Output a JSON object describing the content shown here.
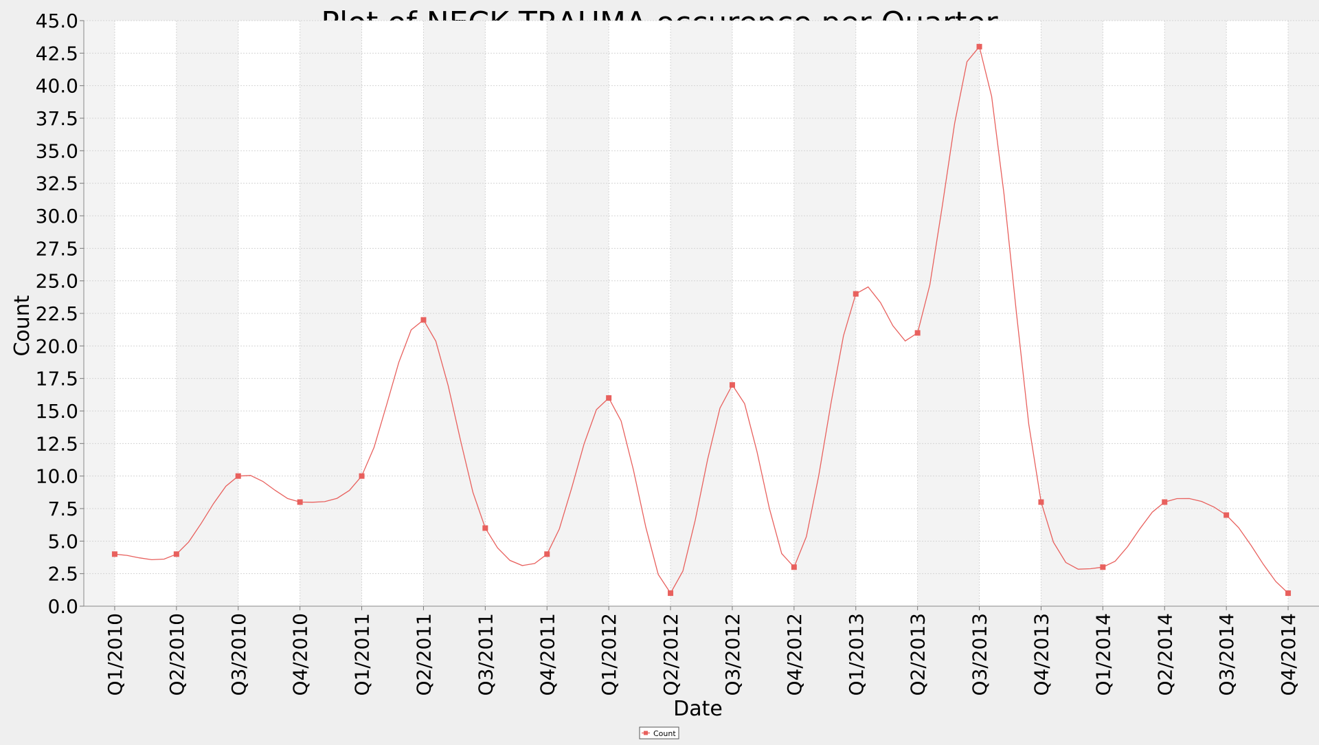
{
  "chart_data": {
    "type": "line",
    "title": "Plot of NECK TRAUMA occurence per Quarter",
    "xlabel": "Date",
    "ylabel": "Count",
    "ylim": [
      0,
      45
    ],
    "y_ticks": [
      "0.0",
      "2.5",
      "5.0",
      "7.5",
      "10.0",
      "12.5",
      "15.0",
      "17.5",
      "20.0",
      "22.5",
      "25.0",
      "27.5",
      "30.0",
      "32.5",
      "35.0",
      "37.5",
      "40.0",
      "42.5",
      "45.0"
    ],
    "grid": true,
    "alternating_bands": true,
    "smoothed": true,
    "categories": [
      "Q1/2010",
      "Q2/2010",
      "Q3/2010",
      "Q4/2010",
      "Q1/2011",
      "Q2/2011",
      "Q3/2011",
      "Q4/2011",
      "Q1/2012",
      "Q2/2012",
      "Q3/2012",
      "Q4/2012",
      "Q1/2013",
      "Q2/2013",
      "Q3/2013",
      "Q4/2013",
      "Q1/2014",
      "Q2/2014",
      "Q3/2014",
      "Q4/2014"
    ],
    "series": [
      {
        "name": "Count",
        "color": "#e8605d",
        "values": [
          4,
          4,
          10,
          8,
          10,
          22,
          6,
          4,
          16,
          1,
          17,
          3,
          24,
          21,
          43,
          8,
          3,
          8,
          7,
          1
        ]
      }
    ],
    "legend": {
      "placement": "bottom-center",
      "label": "Count"
    }
  }
}
